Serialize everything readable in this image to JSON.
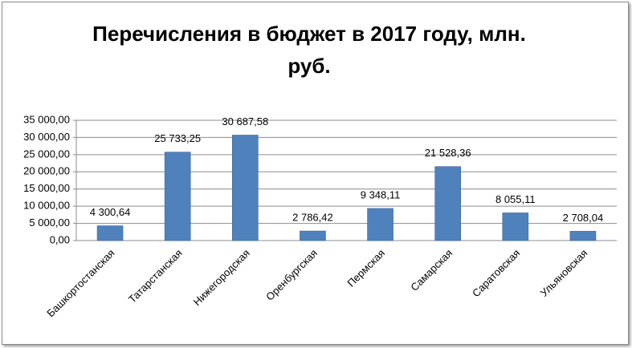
{
  "chart_data": {
    "type": "bar",
    "title": "Перечисления в бюджет в 2017 году, млн. руб.",
    "categories": [
      "Башкортостанская",
      "Татарстанская",
      "Нижегородская",
      "Оренбургская",
      "Пермская",
      "Самарская",
      "Саратовская",
      "Ульяновская"
    ],
    "values": [
      4300.64,
      25733.25,
      30687.58,
      2786.42,
      9348.11,
      21528.36,
      8055.11,
      2708.04
    ],
    "value_labels": [
      "4 300,64",
      "25 733,25",
      "30 687,58",
      "2 786,42",
      "9 348,11",
      "21 528,36",
      "8 055,11",
      "2 708,04"
    ],
    "color": "#4f81bd",
    "ylim": [
      0,
      35000
    ],
    "yticks": [
      {
        "value": 0,
        "label": "0,00"
      },
      {
        "value": 5000,
        "label": "5 000,00"
      },
      {
        "value": 10000,
        "label": "10 000,00"
      },
      {
        "value": 15000,
        "label": "15 000,00"
      },
      {
        "value": 20000,
        "label": "20 000,00"
      },
      {
        "value": 25000,
        "label": "25 000,00"
      },
      {
        "value": 30000,
        "label": "30 000,00"
      },
      {
        "value": 35000,
        "label": "35 000,00"
      }
    ],
    "grid": true
  }
}
